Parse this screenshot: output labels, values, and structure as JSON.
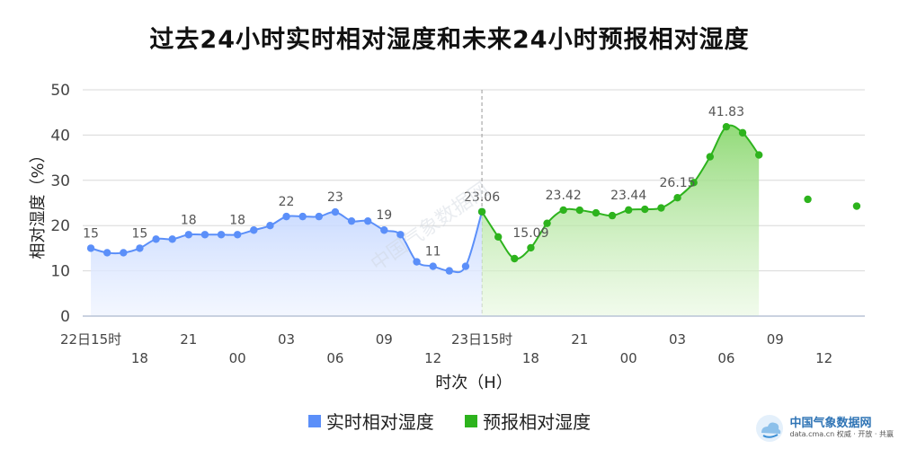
{
  "chart_title": "过去24小时实时相对湿度和未来24小时预报相对湿度",
  "watermark": "中国气象数据网",
  "brand": {
    "name": "中国气象数据网",
    "site": "data.cma.cn 权威 · 开放 · 共赢"
  },
  "legend": {
    "actual": "实时相对湿度",
    "forecast": "预报相对湿度"
  },
  "colors": {
    "actual": "#5b8ff9",
    "forecast": "#2db31d",
    "grid": "#d8d8d8",
    "tick": "#444444",
    "label": "#555555"
  },
  "chart_data": {
    "type": "line",
    "title": "过去24小时实时相对湿度和未来24小时预报相对湿度",
    "xlabel": "时次（H）",
    "ylabel": "相对湿度（%）",
    "ylim": [
      0,
      50
    ],
    "yticks": [
      "0",
      "10",
      "20",
      "30",
      "40",
      "50"
    ],
    "grid": true,
    "legend_position": "bottom",
    "xticks": [
      {
        "idx": 0,
        "label": "22日15时",
        "row": 1
      },
      {
        "idx": 3,
        "label": "18",
        "row": 2
      },
      {
        "idx": 6,
        "label": "21",
        "row": 1
      },
      {
        "idx": 9,
        "label": "00",
        "row": 2
      },
      {
        "idx": 12,
        "label": "03",
        "row": 1
      },
      {
        "idx": 15,
        "label": "06",
        "row": 2
      },
      {
        "idx": 18,
        "label": "09",
        "row": 1
      },
      {
        "idx": 21,
        "label": "12",
        "row": 2
      },
      {
        "idx": 24,
        "label": "23日15时",
        "row": 1
      },
      {
        "idx": 27,
        "label": "18",
        "row": 2
      },
      {
        "idx": 30,
        "label": "21",
        "row": 1
      },
      {
        "idx": 33,
        "label": "00",
        "row": 2
      },
      {
        "idx": 36,
        "label": "03",
        "row": 1
      },
      {
        "idx": 39,
        "label": "06",
        "row": 2
      },
      {
        "idx": 42,
        "label": "09",
        "row": 1
      },
      {
        "idx": 45,
        "label": "12",
        "row": 2
      }
    ],
    "series": [
      {
        "name": "实时相对湿度",
        "x": [
          0,
          1,
          2,
          3,
          4,
          5,
          6,
          7,
          8,
          9,
          10,
          11,
          12,
          13,
          14,
          15,
          16,
          17,
          18,
          19,
          20,
          21,
          22,
          23,
          24
        ],
        "values": [
          15,
          14,
          14,
          15,
          17,
          17,
          18,
          18,
          18,
          18,
          19,
          20,
          22,
          22,
          22,
          23,
          21,
          21,
          19,
          18,
          12,
          11,
          10,
          11,
          23.06
        ],
        "labels": [
          {
            "i": 0,
            "text": "15"
          },
          {
            "i": 3,
            "text": "15"
          },
          {
            "i": 6,
            "text": "18"
          },
          {
            "i": 9,
            "text": "18"
          },
          {
            "i": 12,
            "text": "22"
          },
          {
            "i": 15,
            "text": "23"
          },
          {
            "i": 18,
            "text": "19"
          },
          {
            "i": 21,
            "text": "11"
          }
        ]
      },
      {
        "name": "预报相对湿度",
        "x": [
          24,
          25,
          26,
          27,
          28,
          29,
          30,
          31,
          32,
          33,
          34,
          35,
          36,
          37,
          38,
          39,
          40,
          41
        ],
        "values": [
          23.06,
          17.5,
          12.7,
          15.09,
          20.5,
          23.42,
          23.4,
          22.8,
          22.2,
          23.44,
          23.6,
          23.9,
          26.15,
          29.5,
          35.2,
          41.83,
          40.5,
          35.6
        ],
        "labels": [
          {
            "i": 0,
            "text": "23.06"
          },
          {
            "i": 3,
            "text": "15.09"
          },
          {
            "i": 5,
            "text": "23.42"
          },
          {
            "i": 9,
            "text": "23.44"
          },
          {
            "i": 12,
            "text": "26.15"
          },
          {
            "i": 15,
            "text": "41.83"
          }
        ],
        "extra_points": [
          {
            "x": 44,
            "y": 25.8
          },
          {
            "x": 47,
            "y": 24.3
          }
        ]
      }
    ],
    "divider_at": 24
  }
}
